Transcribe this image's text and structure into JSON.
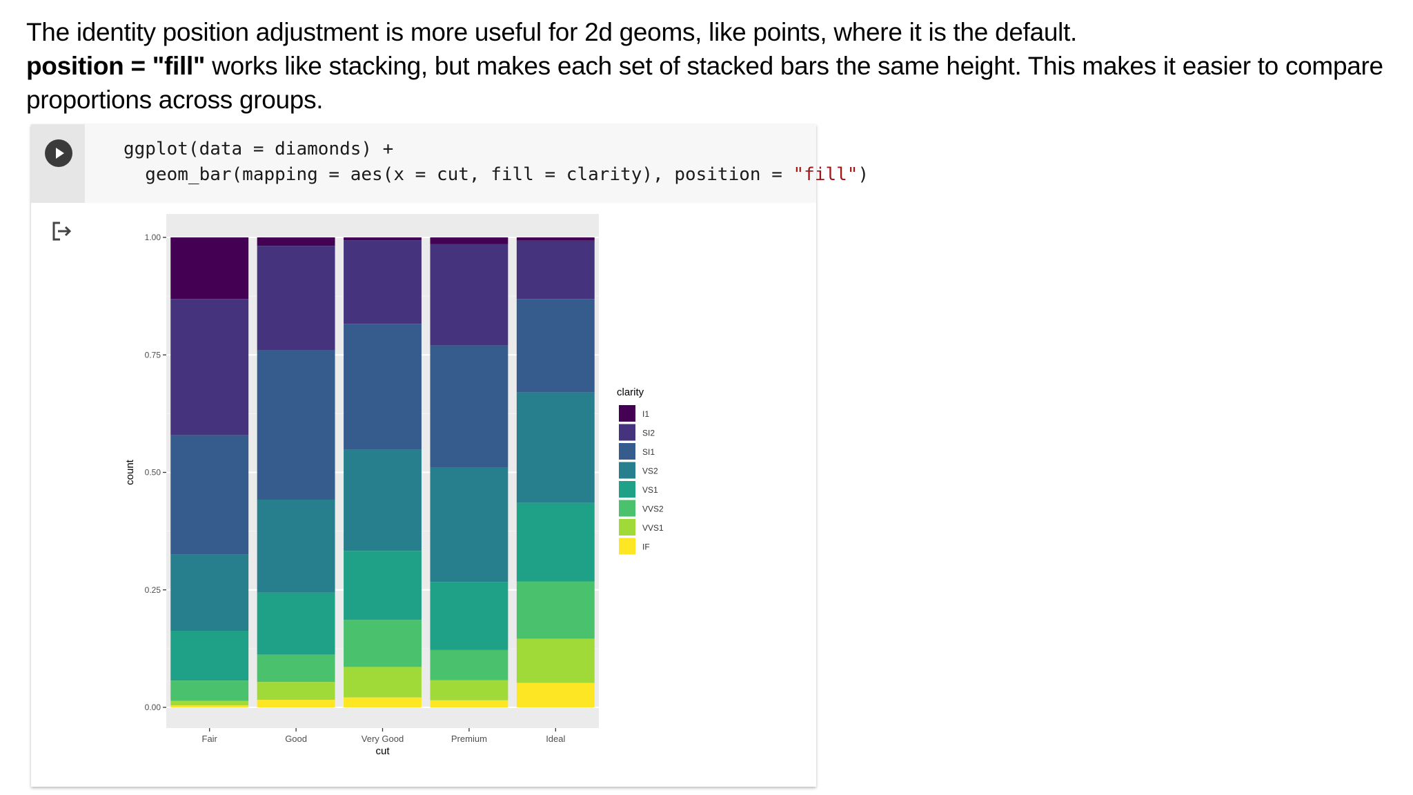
{
  "intro": {
    "line1": "The identity position adjustment is more useful for 2d geoms, like points, where it is the default.",
    "bold_term": "position = \"fill\"",
    "line2_rest": " works like stacking, but makes each set of stacked bars the same height. This makes it easier to compare proportions across groups."
  },
  "cell": {
    "code_line1": "ggplot(data = diamonds) +",
    "code_line2_prefix": "  geom_bar(mapping = aes(x = cut, fill = clarity), position = ",
    "code_line2_string": "\"fill\"",
    "code_line2_suffix": ")",
    "run_icon": "play-icon",
    "output_icon": "output-redirect-icon"
  },
  "chart_data": {
    "type": "bar",
    "stacked": true,
    "position": "fill",
    "xlabel": "cut",
    "ylabel": "count",
    "ylim": [
      0,
      1
    ],
    "yticks": [
      "0.00",
      "0.25",
      "0.50",
      "0.75",
      "1.00"
    ],
    "categories": [
      "Fair",
      "Good",
      "Very Good",
      "Premium",
      "Ideal"
    ],
    "legend_title": "clarity",
    "legend_position": "right",
    "background": "#ebebeb",
    "grid": true,
    "series": [
      {
        "name": "I1",
        "color": "#440154",
        "values": [
          0.131,
          0.018,
          0.006,
          0.014,
          0.007
        ]
      },
      {
        "name": "SI2",
        "color": "#46337e",
        "values": [
          0.29,
          0.222,
          0.178,
          0.216,
          0.124
        ]
      },
      {
        "name": "SI1",
        "color": "#365c8d",
        "values": [
          0.254,
          0.318,
          0.268,
          0.259,
          0.199
        ]
      },
      {
        "name": "VS2",
        "color": "#277f8e",
        "values": [
          0.162,
          0.198,
          0.215,
          0.244,
          0.235
        ]
      },
      {
        "name": "VS1",
        "color": "#1fa187",
        "values": [
          0.106,
          0.132,
          0.147,
          0.145,
          0.167
        ]
      },
      {
        "name": "VVS2",
        "color": "#4ac16d",
        "values": [
          0.043,
          0.058,
          0.1,
          0.064,
          0.122
        ]
      },
      {
        "name": "VVS1",
        "color": "#a0da39",
        "values": [
          0.01,
          0.038,
          0.065,
          0.043,
          0.094
        ]
      },
      {
        "name": "IF",
        "color": "#fde725",
        "values": [
          0.004,
          0.016,
          0.021,
          0.015,
          0.052
        ]
      }
    ]
  }
}
